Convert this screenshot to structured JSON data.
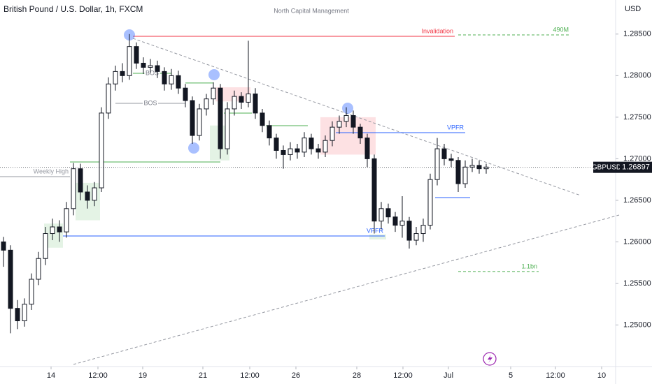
{
  "chart_data": {
    "type": "candlestick",
    "title": "British Pound / U.S. Dollar, 1h, FXCM",
    "subtitle": "North Capital Management",
    "currency": "USD",
    "symbol": "GBPUSD",
    "last_price": {
      "value": 1.26897,
      "label": "1.26897"
    },
    "up_color": "#131722",
    "down_color": "#131722",
    "xlim": [
      -0.5,
      87.5
    ],
    "ylim": [
      1.245,
      1.2891
    ],
    "xticks": [
      {
        "value": 6.8,
        "label": "14"
      },
      {
        "value": 13.5,
        "label": "12:00"
      },
      {
        "value": 19.9,
        "label": "19"
      },
      {
        "value": 28.5,
        "label": "21"
      },
      {
        "value": 35.2,
        "label": "12:00"
      },
      {
        "value": 41.8,
        "label": "26"
      },
      {
        "value": 50.5,
        "label": "28"
      },
      {
        "value": 57.1,
        "label": "12:00"
      },
      {
        "value": 63.6,
        "label": "Jul"
      },
      {
        "value": 72.5,
        "label": "5"
      },
      {
        "value": 78.9,
        "label": "12:00"
      },
      {
        "value": 85.5,
        "label": "10"
      }
    ],
    "yticks": [
      {
        "value": 1.25,
        "label": "1.25000"
      },
      {
        "value": 1.255,
        "label": "1.25500"
      },
      {
        "value": 1.26,
        "label": "1.26000"
      },
      {
        "value": 1.265,
        "label": "1.26500"
      },
      {
        "value": 1.27,
        "label": "1.27000"
      },
      {
        "value": 1.275,
        "label": "1.27500"
      },
      {
        "value": 1.28,
        "label": "1.28000"
      },
      {
        "value": 1.285,
        "label": "1.28500"
      }
    ],
    "open": [
      1.26,
      1.259,
      1.252,
      1.2505,
      1.2525,
      1.2555,
      1.258,
      1.261,
      1.2618,
      1.2612,
      1.264,
      1.2688,
      1.266,
      1.265,
      1.2665,
      1.2755,
      1.279,
      1.2805,
      1.28,
      1.2835,
      1.2815,
      1.281,
      1.2812,
      1.2805,
      1.279,
      1.28,
      1.2785,
      1.277,
      1.2728,
      1.276,
      1.2772,
      1.2785,
      1.2712,
      1.276,
      1.2775,
      1.2768,
      1.2778,
      1.2755,
      1.274,
      1.2725,
      1.271,
      1.2705,
      1.2712,
      1.2708,
      1.2725,
      1.2712,
      1.2708,
      1.2722,
      1.2738,
      1.2745,
      1.2752,
      1.2738,
      1.2725,
      1.27,
      1.2625,
      1.264,
      1.263,
      1.262,
      1.2625,
      1.2602,
      1.261,
      1.262,
      1.2675,
      1.2712,
      1.27,
      1.2698,
      1.267,
      1.269,
      1.2692,
      1.2688
    ],
    "high": [
      1.2606,
      1.2596,
      1.253,
      1.2532,
      1.2562,
      1.2588,
      1.2618,
      1.2628,
      1.2626,
      1.2648,
      1.2695,
      1.2694,
      1.2668,
      1.2672,
      1.2762,
      1.2798,
      1.2812,
      1.2815,
      1.285,
      1.284,
      1.2822,
      1.282,
      1.2818,
      1.281,
      1.2808,
      1.2806,
      1.279,
      1.2775,
      1.2766,
      1.2778,
      1.2792,
      1.279,
      1.2768,
      1.2782,
      1.278,
      1.2842,
      1.2785,
      1.276,
      1.2746,
      1.273,
      1.2716,
      1.272,
      1.2718,
      1.2732,
      1.273,
      1.2718,
      1.2728,
      1.2745,
      1.2752,
      1.2762,
      1.2758,
      1.2742,
      1.273,
      1.2705,
      1.2648,
      1.2646,
      1.2636,
      1.2655,
      1.263,
      1.2618,
      1.2628,
      1.2682,
      1.2725,
      1.2718,
      1.2706,
      1.2702,
      1.2698,
      1.27,
      1.2698,
      1.2694
    ],
    "low": [
      1.257,
      1.249,
      1.2495,
      1.2498,
      1.2518,
      1.2548,
      1.2572,
      1.2602,
      1.26,
      1.2605,
      1.2632,
      1.265,
      1.264,
      1.2643,
      1.266,
      1.2748,
      1.2782,
      1.2792,
      1.2795,
      1.2808,
      1.2802,
      1.2803,
      1.2797,
      1.2782,
      1.2783,
      1.2778,
      1.2762,
      1.2718,
      1.2722,
      1.2752,
      1.2765,
      1.27,
      1.2705,
      1.2752,
      1.276,
      1.2762,
      1.2748,
      1.2732,
      1.2716,
      1.27,
      1.2688,
      1.2698,
      1.27,
      1.2702,
      1.2705,
      1.27,
      1.2702,
      1.2715,
      1.273,
      1.2738,
      1.273,
      1.2718,
      1.269,
      1.261,
      1.2615,
      1.2622,
      1.2612,
      1.2605,
      1.2592,
      1.2596,
      1.26,
      1.2615,
      1.2668,
      1.2692,
      1.269,
      1.266,
      1.2665,
      1.2684,
      1.2682,
      1.2682
    ],
    "close": [
      1.259,
      1.252,
      1.2505,
      1.2525,
      1.2555,
      1.258,
      1.261,
      1.2618,
      1.2612,
      1.264,
      1.2688,
      1.266,
      1.265,
      1.2665,
      1.2755,
      1.279,
      1.2805,
      1.28,
      1.2835,
      1.2815,
      1.281,
      1.2812,
      1.2805,
      1.279,
      1.28,
      1.2785,
      1.277,
      1.2728,
      1.276,
      1.2772,
      1.2785,
      1.2712,
      1.276,
      1.2775,
      1.2768,
      1.2778,
      1.2755,
      1.274,
      1.2725,
      1.271,
      1.2705,
      1.2712,
      1.2708,
      1.2725,
      1.2712,
      1.2708,
      1.2722,
      1.2738,
      1.2745,
      1.2752,
      1.2738,
      1.2725,
      1.27,
      1.2625,
      1.264,
      1.263,
      1.262,
      1.2625,
      1.2602,
      1.261,
      1.262,
      1.2675,
      1.2712,
      1.27,
      1.2698,
      1.267,
      1.269,
      1.2692,
      1.2688,
      1.269
    ],
    "drawings": [
      {
        "kind": "box",
        "x": [
          5.8,
          8.5
        ],
        "y": [
          1.2622,
          1.2593
        ],
        "color": "#4caf50"
      },
      {
        "kind": "box",
        "x": [
          10.3,
          13.8
        ],
        "y": [
          1.2671,
          1.2626
        ],
        "color": "#4caf50"
      },
      {
        "kind": "box",
        "x": [
          29.5,
          32.3
        ],
        "y": [
          1.274,
          1.2698
        ],
        "color": "#4caf50"
      },
      {
        "kind": "box",
        "x": [
          52.3,
          54.7
        ],
        "y": [
          1.2609,
          1.2603
        ],
        "color": "#4caf50"
      },
      {
        "kind": "box",
        "x": [
          30.3,
          35.3
        ],
        "y": [
          1.2786,
          1.2769
        ],
        "color": "#f23645"
      },
      {
        "kind": "box",
        "x": [
          45.3,
          53.2
        ],
        "y": [
          1.275,
          1.2705
        ],
        "color": "#f23645"
      },
      {
        "kind": "line",
        "x": [
          18.5,
          82.5
        ],
        "y": [
          1.28448,
          1.26558
        ],
        "color": "#9598a1",
        "dash": true
      },
      {
        "kind": "line",
        "x": [
          10.0,
          88.0
        ],
        "y": [
          1.24526,
          1.26323
        ],
        "color": "#9598a1",
        "dash": true
      },
      {
        "kind": "line",
        "x": [
          18.5,
          64.5
        ],
        "y": [
          1.28473,
          1.28473
        ],
        "color": "#f23645",
        "dash": false,
        "label": "Invalidation",
        "label_pos": "end"
      },
      {
        "kind": "line",
        "x": [
          65.0,
          81.0
        ],
        "y": [
          1.2849,
          1.2849
        ],
        "color": "#4caf50",
        "dash": true,
        "label": "490M",
        "label_pos": "end"
      },
      {
        "kind": "line",
        "x": [
          -0.5,
          9.5
        ],
        "y": [
          1.26785,
          1.26785
        ],
        "color": "#9598a1",
        "dash": false,
        "label": "Weekly High",
        "label_pos": "end"
      },
      {
        "kind": "line",
        "x": [
          9.5,
          31.0
        ],
        "y": [
          1.26961,
          1.26961
        ],
        "color": "#4caf50",
        "dash": false
      },
      {
        "kind": "line",
        "x": [
          8.5,
          54.5
        ],
        "y": [
          1.26071,
          1.26071
        ],
        "color": "#2962ff",
        "dash": false,
        "label": "VPFR",
        "label_pos": "end"
      },
      {
        "kind": "line",
        "x": [
          18.5,
          24.0
        ],
        "y": [
          1.28028,
          1.28028
        ],
        "color": "#4caf50",
        "dash": false,
        "label": "BOS",
        "label_pos": "middle"
      },
      {
        "kind": "line",
        "x": [
          16.0,
          26.0
        ],
        "y": [
          1.27667,
          1.27667
        ],
        "color": "#9598a1",
        "dash": false,
        "label": "BOS",
        "label_pos": "middle"
      },
      {
        "kind": "line",
        "x": [
          26.0,
          30.0
        ],
        "y": [
          1.27911,
          1.27911
        ],
        "color": "#4caf50",
        "dash": false
      },
      {
        "kind": "line",
        "x": [
          31.5,
          35.5
        ],
        "y": [
          1.27549,
          1.27549
        ],
        "color": "#4caf50",
        "dash": false
      },
      {
        "kind": "line",
        "x": [
          37.5,
          43.5
        ],
        "y": [
          1.27398,
          1.27398
        ],
        "color": "#4caf50",
        "dash": false
      },
      {
        "kind": "line",
        "x": [
          47.5,
          66.0
        ],
        "y": [
          1.27314,
          1.27314
        ],
        "color": "#2962ff",
        "dash": false,
        "label": "VPFR",
        "label_pos": "end"
      },
      {
        "kind": "line",
        "x": [
          61.7,
          66.7
        ],
        "y": [
          1.26533,
          1.26533
        ],
        "color": "#2962ff",
        "dash": false
      },
      {
        "kind": "line",
        "x": [
          65.0,
          76.5
        ],
        "y": [
          1.25643,
          1.25643
        ],
        "color": "#4caf50",
        "dash": true,
        "label": "1.1bn",
        "label_pos": "end"
      },
      {
        "kind": "marker",
        "x": [
          18.0
        ],
        "y": [
          1.2849
        ],
        "color": "#2962ff"
      },
      {
        "kind": "marker",
        "x": [
          30.1
        ],
        "y": [
          1.28011
        ],
        "color": "#2962ff"
      },
      {
        "kind": "marker",
        "x": [
          27.2
        ],
        "y": [
          1.27129
        ],
        "color": "#2962ff"
      },
      {
        "kind": "marker",
        "x": [
          49.2
        ],
        "y": [
          1.27608
        ],
        "color": "#2962ff"
      }
    ]
  }
}
